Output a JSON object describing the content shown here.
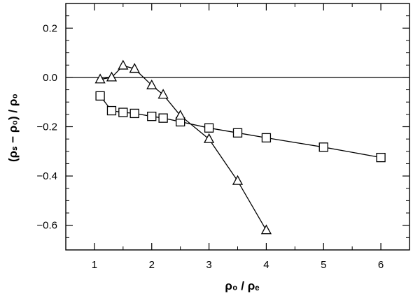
{
  "chart_data": {
    "type": "line",
    "xlim": [
      0.5,
      6.5
    ],
    "ylim": [
      -0.7,
      0.3
    ],
    "x_ticks": [
      1,
      2,
      3,
      4,
      5,
      6
    ],
    "y_ticks": [
      -0.6,
      -0.4,
      -0.2,
      0.0,
      0.2
    ],
    "x_tick_labels": [
      "1",
      "2",
      "3",
      "4",
      "5",
      "6"
    ],
    "y_tick_labels": [
      "−0.6",
      "−0.4",
      "−0.2",
      "0.0",
      "0.2"
    ],
    "xlabel": "ρ₀ / ρₑ",
    "ylabel": "(ρₛ − ρ₀) / ρ₀",
    "reference_line_y": 0.0,
    "grid": false,
    "series": [
      {
        "marker": "square",
        "x": [
          1.1,
          1.3,
          1.5,
          1.7,
          2.0,
          2.2,
          2.5,
          3.0,
          3.5,
          4.0,
          5.0,
          6.0
        ],
        "y": [
          -0.075,
          -0.135,
          -0.142,
          -0.146,
          -0.158,
          -0.165,
          -0.18,
          -0.205,
          -0.225,
          -0.245,
          -0.283,
          -0.325
        ]
      },
      {
        "marker": "triangle",
        "x": [
          1.1,
          1.3,
          1.5,
          1.7,
          2.0,
          2.2,
          2.5,
          3.0,
          3.5,
          4.0
        ],
        "y": [
          -0.008,
          0.0,
          0.048,
          0.035,
          -0.032,
          -0.07,
          -0.155,
          -0.25,
          -0.42,
          -0.62
        ]
      }
    ]
  }
}
